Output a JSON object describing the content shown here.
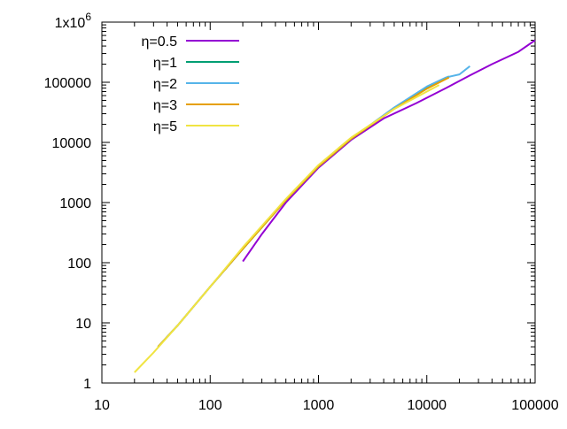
{
  "chart_data": {
    "type": "line",
    "title": "",
    "xlabel": "",
    "ylabel": "",
    "xscale": "log",
    "yscale": "log",
    "xlim": [
      10,
      100000
    ],
    "ylim": [
      1,
      1000000
    ],
    "grid": false,
    "legend_position": "top-left",
    "x_ticks": [
      {
        "value": 10,
        "label": "10"
      },
      {
        "value": 100,
        "label": "100"
      },
      {
        "value": 1000,
        "label": "1000"
      },
      {
        "value": 10000,
        "label": "10000"
      },
      {
        "value": 100000,
        "label": "100000"
      }
    ],
    "y_ticks": [
      {
        "value": 1,
        "label": "1"
      },
      {
        "value": 10,
        "label": "10"
      },
      {
        "value": 100,
        "label": "100"
      },
      {
        "value": 1000,
        "label": "1000"
      },
      {
        "value": 10000,
        "label": "10000"
      },
      {
        "value": 100000,
        "label": "100000"
      }
    ],
    "y_top_label": {
      "base": "1x10",
      "exponent": "6"
    },
    "series": [
      {
        "name": "η=0.5",
        "color": "#9400d3",
        "points": [
          [
            200,
            105
          ],
          [
            300,
            300
          ],
          [
            500,
            1000
          ],
          [
            1000,
            3800
          ],
          [
            2000,
            11000
          ],
          [
            4000,
            25000
          ],
          [
            8000,
            45000
          ],
          [
            15000,
            80000
          ],
          [
            25000,
            130000
          ],
          [
            40000,
            200000
          ],
          [
            70000,
            320000
          ],
          [
            100000,
            500000
          ]
        ]
      },
      {
        "name": "η=1",
        "color": "#009e73",
        "points": [
          [
            33,
            4
          ],
          [
            50,
            9
          ],
          [
            100,
            40
          ],
          [
            200,
            170
          ],
          [
            500,
            1100
          ],
          [
            1000,
            4000
          ],
          [
            2000,
            11500
          ],
          [
            5000,
            37000
          ],
          [
            10000,
            80000
          ],
          [
            16000,
            125000
          ]
        ]
      },
      {
        "name": "η=2",
        "color": "#56b4e9",
        "points": [
          [
            33,
            4
          ],
          [
            50,
            9
          ],
          [
            100,
            40
          ],
          [
            200,
            170
          ],
          [
            500,
            1100
          ],
          [
            1000,
            4000
          ],
          [
            2000,
            11500
          ],
          [
            5000,
            38000
          ],
          [
            10000,
            85000
          ],
          [
            15000,
            120000
          ],
          [
            20000,
            135000
          ],
          [
            25000,
            185000
          ]
        ]
      },
      {
        "name": "η=3",
        "color": "#e69f00",
        "points": [
          [
            33,
            4
          ],
          [
            50,
            9
          ],
          [
            100,
            40
          ],
          [
            200,
            170
          ],
          [
            500,
            1100
          ],
          [
            1000,
            4000
          ],
          [
            2000,
            11500
          ],
          [
            5000,
            36000
          ],
          [
            10000,
            78000
          ],
          [
            16000,
            120000
          ]
        ]
      },
      {
        "name": "η=5",
        "color": "#f0e442",
        "points": [
          [
            20,
            1.5
          ],
          [
            30,
            3.2
          ],
          [
            50,
            9
          ],
          [
            100,
            40
          ],
          [
            200,
            180
          ],
          [
            500,
            1150
          ],
          [
            1000,
            4200
          ],
          [
            2000,
            12000
          ],
          [
            5000,
            36000
          ],
          [
            10000,
            70000
          ],
          [
            13000,
            90000
          ]
        ]
      }
    ]
  }
}
